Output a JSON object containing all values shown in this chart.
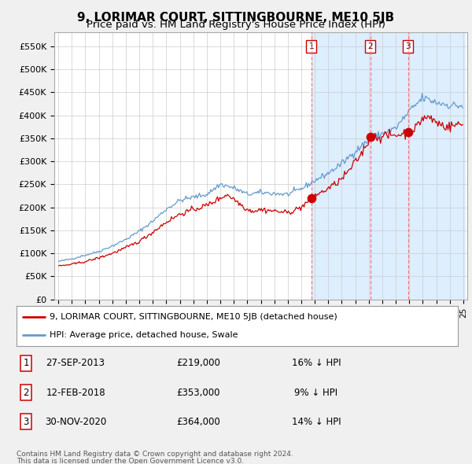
{
  "title": "9, LORIMAR COURT, SITTINGBOURNE, ME10 5JB",
  "subtitle": "Price paid vs. HM Land Registry's House Price Index (HPI)",
  "title_fontsize": 11,
  "subtitle_fontsize": 9.5,
  "ylabel_ticks": [
    "£0",
    "£50K",
    "£100K",
    "£150K",
    "£200K",
    "£250K",
    "£300K",
    "£350K",
    "£400K",
    "£450K",
    "£500K",
    "£550K"
  ],
  "ytick_values": [
    0,
    50000,
    100000,
    150000,
    200000,
    250000,
    300000,
    350000,
    400000,
    450000,
    500000,
    550000
  ],
  "ylim": [
    0,
    580000
  ],
  "hpi_color": "#6699CC",
  "price_color": "#CC0000",
  "highlight_color": "#ddeeff",
  "background_color": "#f0f0f0",
  "plot_bg_color": "#ffffff",
  "sale1_price": 219000,
  "sale1_x": 2013.75,
  "sale2_price": 353000,
  "sale2_x": 2018.12,
  "sale3_price": 364000,
  "sale3_x": 2020.92,
  "sale1_date": "27-SEP-2013",
  "sale2_date": "12-FEB-2018",
  "sale3_date": "30-NOV-2020",
  "sale1_label": "16% ↓ HPI",
  "sale2_label": "9% ↓ HPI",
  "sale3_label": "14% ↓ HPI",
  "legend_line1": "9, LORIMAR COURT, SITTINGBOURNE, ME10 5JB (detached house)",
  "legend_line2": "HPI: Average price, detached house, Swale",
  "footer_line1": "Contains HM Land Registry data © Crown copyright and database right 2024.",
  "footer_line2": "This data is licensed under the Open Government Licence v3.0."
}
